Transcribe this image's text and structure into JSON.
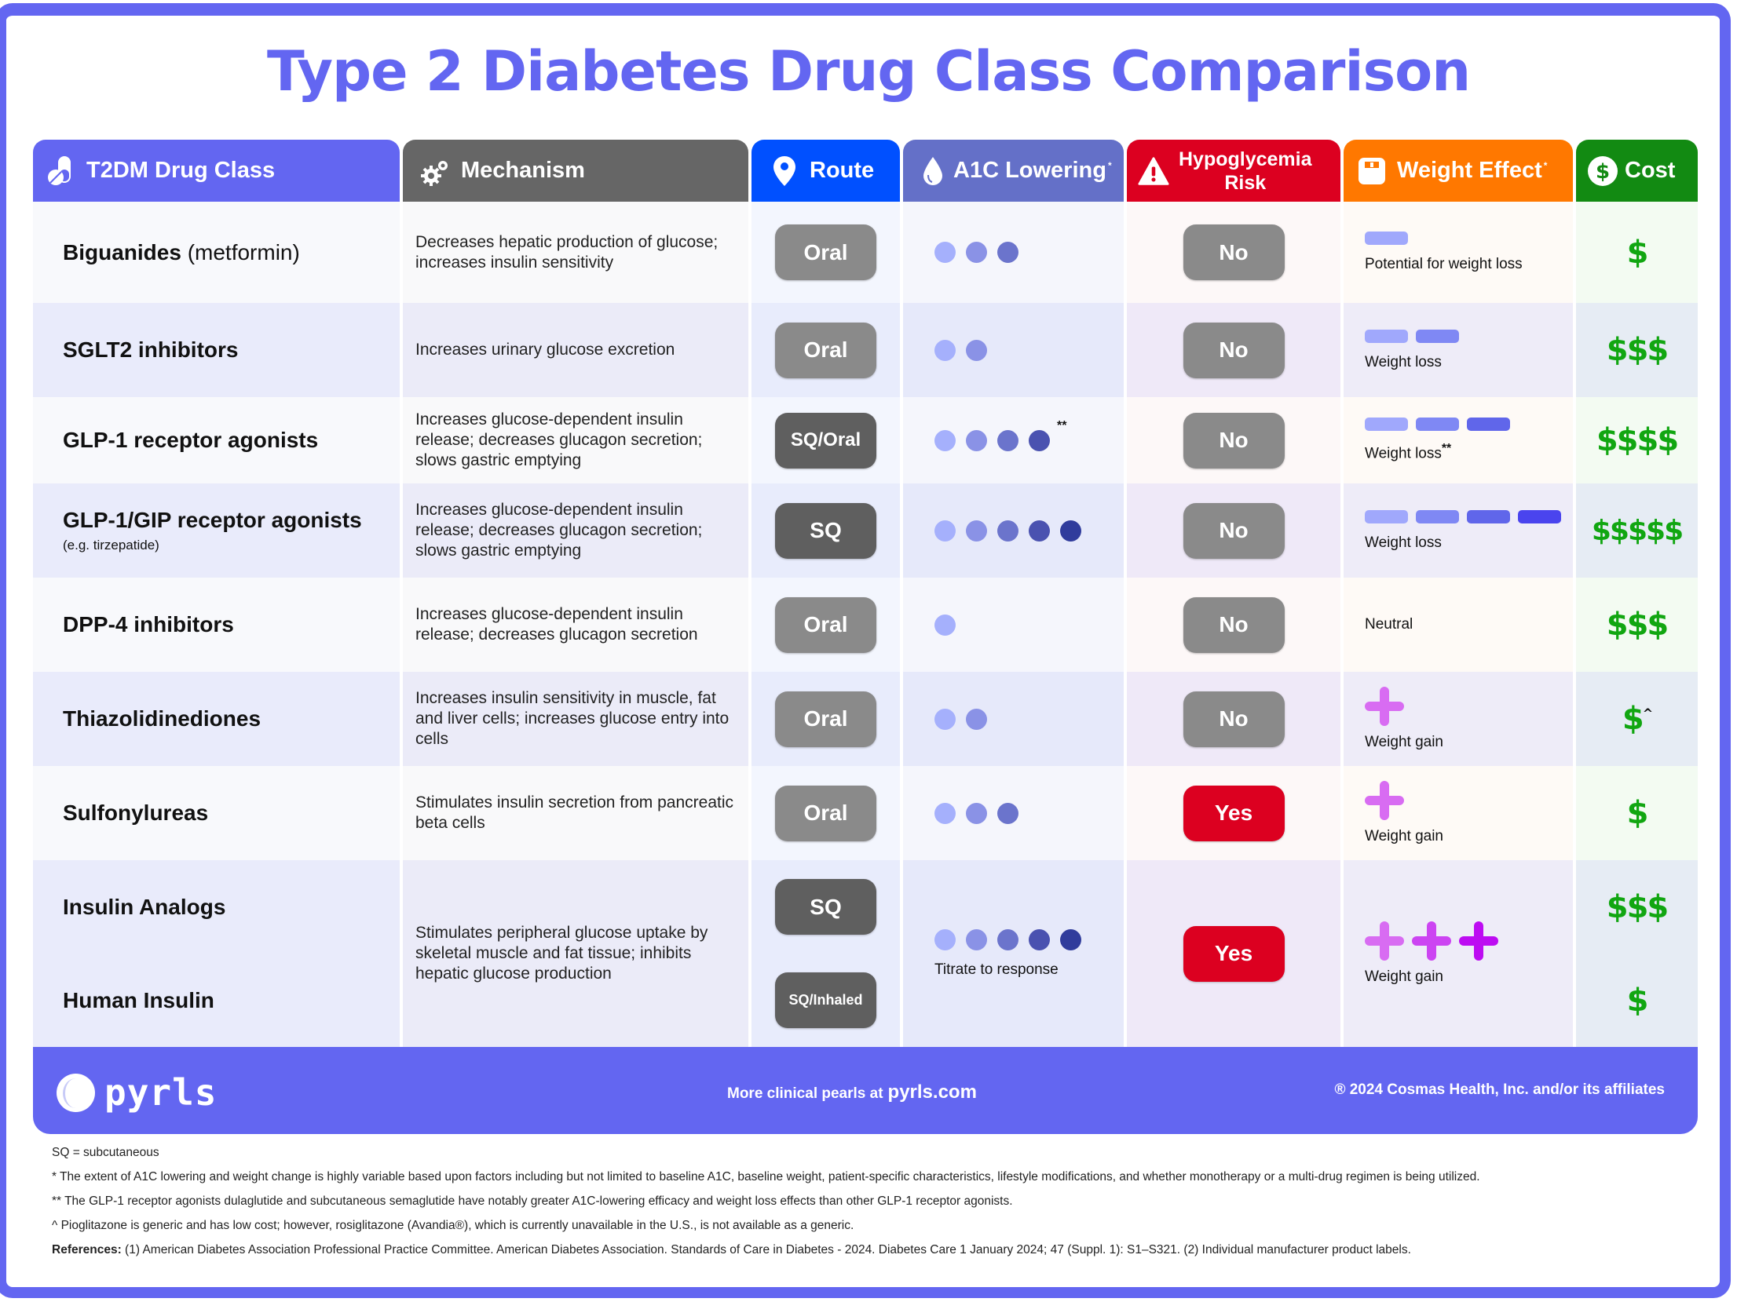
{
  "title": "Type 2 Diabetes Drug Class Comparison",
  "headers": [
    {
      "key": "class",
      "label": "T2DM Drug Class",
      "icon": "pill-icon",
      "color": "#6366f1"
    },
    {
      "key": "mechanism",
      "label": "Mechanism",
      "icon": "gears-icon",
      "color": "#666666"
    },
    {
      "key": "route",
      "label": "Route",
      "icon": "location-pin-icon",
      "color": "#0050ff"
    },
    {
      "key": "a1c",
      "label": "A1C Lowering",
      "footnote": "*",
      "icon": "droplet-icon",
      "color": "#6470c8"
    },
    {
      "key": "hypo",
      "label_line1": "Hypoglycemia",
      "label_line2": "Risk",
      "icon": "warning-icon",
      "color": "#dc0020"
    },
    {
      "key": "weight",
      "label": "Weight Effect",
      "footnote": "*",
      "icon": "scale-icon",
      "color": "#ff7800"
    },
    {
      "key": "cost",
      "label": "Cost",
      "icon": "dollar-circle-icon",
      "color": "#128a12"
    }
  ],
  "colors": {
    "a1c_dots": [
      "#a5b0fc",
      "#8a92e6",
      "#6b74cc",
      "#4a52b0",
      "#303c9c"
    ],
    "weight_bars": [
      "#a0a8fc",
      "#7f88f4",
      "#6066ea",
      "#4a44ee"
    ],
    "weight_plus": [
      "#d86cf2",
      "#cc44f2",
      "#bd0cf2"
    ],
    "cost": "#11a611",
    "yes": "#dc0020",
    "no": "#8a8a8a",
    "brand": "#6366f1"
  },
  "rows": [
    {
      "class": "Biguanides",
      "class_paren": "(metformin)",
      "mechanism": "Decreases hepatic production of glucose; increases insulin sensitivity",
      "route": "Oral",
      "route_style": "light",
      "a1c_level": 3,
      "a1c_note": "",
      "hypo": "No",
      "weight_type": "loss",
      "weight_level": 1,
      "weight_label": "Potential for weight loss",
      "weight_note": "",
      "cost": "$",
      "cost_note": ""
    },
    {
      "class": "SGLT2 inhibitors",
      "mechanism": "Increases urinary glucose excretion",
      "route": "Oral",
      "route_style": "light",
      "a1c_level": 2,
      "a1c_note": "",
      "hypo": "No",
      "weight_type": "loss",
      "weight_level": 2,
      "weight_label": "Weight loss",
      "weight_note": "",
      "cost": "$$$",
      "cost_note": ""
    },
    {
      "class": "GLP-1 receptor agonists",
      "mechanism": "Increases glucose-dependent insulin release; decreases glucagon secretion; slows gastric emptying",
      "route": "SQ/Oral",
      "route_style": "dark",
      "a1c_level": 4,
      "a1c_note": "**",
      "hypo": "No",
      "weight_type": "loss",
      "weight_level": 3,
      "weight_label": "Weight loss",
      "weight_note": "**",
      "cost": "$$$$",
      "cost_note": ""
    },
    {
      "class": "GLP-1/GIP receptor agonists",
      "class_sub": "(e.g. tirzepatide)",
      "mechanism": "Increases glucose-dependent insulin release; decreases glucagon secretion; slows gastric emptying",
      "route": "SQ",
      "route_style": "dark",
      "a1c_level": 5,
      "a1c_note": "",
      "hypo": "No",
      "weight_type": "loss",
      "weight_level": 4,
      "weight_label": "Weight loss",
      "weight_note": "",
      "cost": "$$$$$",
      "cost_note": ""
    },
    {
      "class": "DPP-4 inhibitors",
      "mechanism": "Increases glucose-dependent insulin release; decreases glucagon secretion",
      "route": "Oral",
      "route_style": "light",
      "a1c_level": 1,
      "a1c_note": "",
      "hypo": "No",
      "weight_type": "neutral",
      "weight_level": 0,
      "weight_label": "Neutral",
      "weight_note": "",
      "cost": "$$$",
      "cost_note": ""
    },
    {
      "class": "Thiazolidinediones",
      "mechanism": "Increases insulin sensitivity in muscle, fat and liver cells; increases glucose entry into cells",
      "route": "Oral",
      "route_style": "light",
      "a1c_level": 2,
      "a1c_note": "",
      "hypo": "No",
      "weight_type": "gain",
      "weight_level": 1,
      "weight_label": "Weight gain",
      "weight_note": "",
      "cost": "$",
      "cost_note": "^"
    },
    {
      "class": "Sulfonylureas",
      "mechanism": "Stimulates insulin secretion from pancreatic beta cells",
      "route": "Oral",
      "route_style": "light",
      "a1c_level": 3,
      "a1c_note": "",
      "hypo": "Yes",
      "weight_type": "gain",
      "weight_level": 1,
      "weight_label": "Weight gain",
      "weight_note": "",
      "cost": "$",
      "cost_note": ""
    }
  ],
  "insulin": {
    "class_a": "Insulin Analogs",
    "class_b": "Human Insulin",
    "mechanism": "Stimulates peripheral glucose uptake by skeletal muscle and fat tissue; inhibits hepatic glucose production",
    "route_a": "SQ",
    "route_b": "SQ/Inhaled",
    "a1c_level": 5,
    "a1c_label": "Titrate to response",
    "hypo": "Yes",
    "weight_level": 3,
    "weight_label": "Weight gain",
    "cost_a": "$$$",
    "cost_b": "$"
  },
  "footer": {
    "brand": "pyrls",
    "more_text": "More clinical pearls at",
    "more_link": "pyrls.com",
    "copyright": "® 2024 Cosmas Health, Inc. and/or its affiliates"
  },
  "notes": {
    "sq": "SQ = subcutaneous",
    "star": "* The extent of A1C lowering and weight change is highly variable based upon factors including but not limited to baseline A1C, baseline weight, patient-specific characteristics, lifestyle modifications, and whether monotherapy or a multi-drug regimen is being utilized.",
    "dstar": "** The GLP-1 receptor agonists dulaglutide and subcutaneous semaglutide have notably greater A1C-lowering efficacy and weight loss effects than other GLP-1 receptor agonists.",
    "caret": "^ Pioglitazone is generic and has low cost; however, rosiglitazone (Avandia®), which is currently unavailable in the U.S., is not available as a generic.",
    "ref_label": "References:",
    "ref_text": " (1) American Diabetes Association Professional Practice Committee. American Diabetes Association. Standards of Care in Diabetes - 2024. Diabetes Care 1 January 2024; 47 (Suppl. 1): S1–S321. (2) Individual manufacturer product labels."
  }
}
